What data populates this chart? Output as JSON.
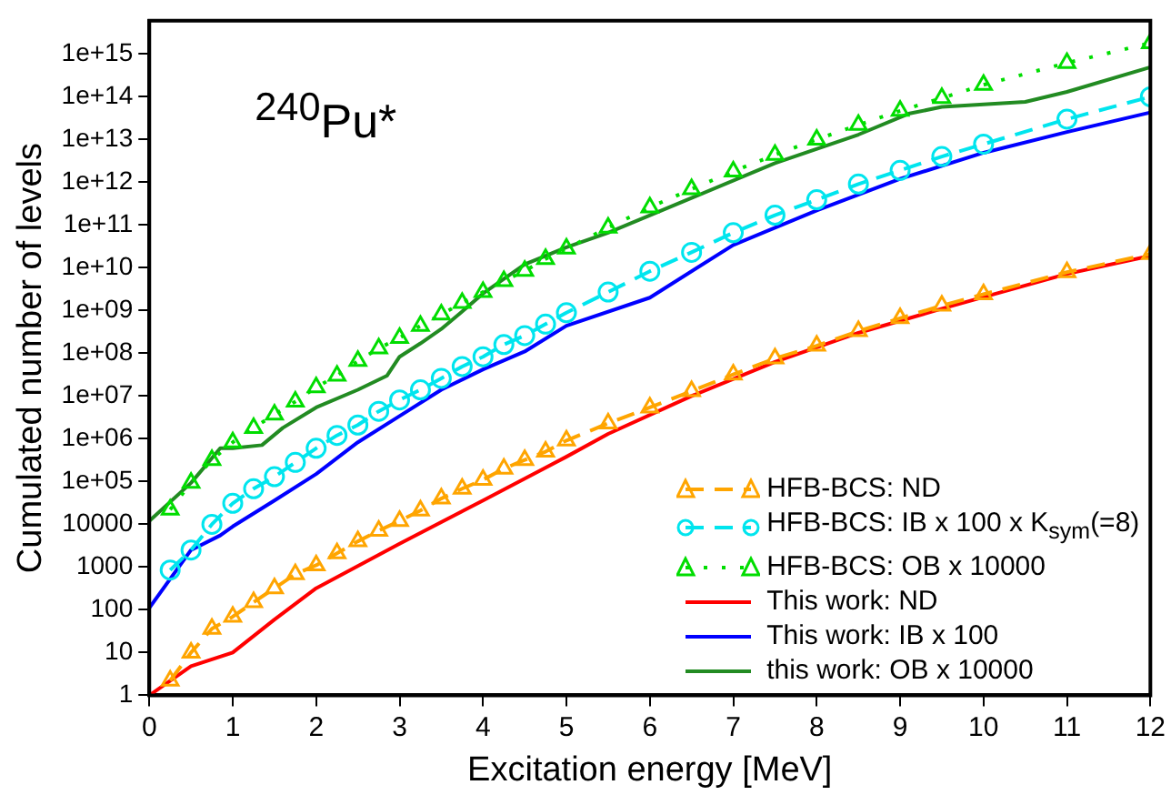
{
  "chart_data": {
    "type": "line",
    "xlabel": "Excitation energy [MeV]",
    "ylabel": "Cumulated number of levels",
    "annotations": [
      "$^{240}$Pu*"
    ],
    "log": "y",
    "grid": false,
    "legend": "bottom right",
    "xlim": [
      0,
      12
    ],
    "xticks": [
      0,
      1,
      2,
      3,
      4,
      5,
      6,
      7,
      8,
      9,
      10,
      11,
      12
    ],
    "ylim": [
      1,
      6000000000000000.0
    ],
    "yticks": [
      1,
      10,
      100,
      1000,
      10000,
      {
        "value": 100000.0,
        "label": "1e+05"
      },
      {
        "value": 1000000.0,
        "label": "1e+06"
      },
      {
        "value": 10000000.0,
        "label": "1e+07"
      },
      {
        "value": 100000000.0,
        "label": "1e+08"
      },
      {
        "value": 1000000000.0,
        "label": "1e+09"
      },
      {
        "value": 10000000000.0,
        "label": "1e+10"
      },
      {
        "value": 100000000000.0,
        "label": "1e+11"
      },
      {
        "value": 1000000000000.0,
        "label": "1e+12"
      },
      {
        "value": 10000000000000.0,
        "label": "1e+13"
      },
      {
        "value": 100000000000000.0,
        "label": "1e+14"
      },
      {
        "value": 1000000000000000.0,
        "label": "1e+15"
      }
    ],
    "series": [
      {
        "name": "HFB-BCS: ND",
        "color": "#ffa500",
        "marker": "triangle",
        "line_style": "dashed",
        "x": [
          0.25,
          0.5,
          0.75,
          1,
          1.25,
          1.5,
          1.75,
          2,
          2.25,
          2.5,
          2.75,
          3,
          3.25,
          3.5,
          3.75,
          4,
          4.25,
          4.5,
          4.75,
          5,
          5.5,
          6,
          6.5,
          7,
          7.5,
          8,
          8.5,
          9,
          9.5,
          10,
          11,
          12
        ],
        "values": [
          2.2,
          10,
          36,
          69,
          150,
          320,
          680,
          1100,
          2100,
          4000,
          7100,
          12000.0,
          21000.0,
          40000.0,
          68000.0,
          110000.0,
          200000.0,
          320000.0,
          500000.0,
          910000.0,
          2300000.0,
          5400000.0,
          13000000.0,
          32000000.0,
          76000000.0,
          150000000.0,
          330000000.0,
          660000000.0,
          1300000000.0,
          2400000000.0,
          7900000000.0,
          21000000000.0
        ]
      },
      {
        "name": "HFB-BCS: IB x 100 x K$_{sym}$(=8)",
        "color": "#00e5ee",
        "marker": "circle",
        "line_style": "dashed",
        "x": [
          0.25,
          0.5,
          0.75,
          1,
          1.25,
          1.5,
          1.75,
          2,
          2.25,
          2.5,
          2.75,
          3,
          3.25,
          3.5,
          3.75,
          4,
          4.25,
          4.5,
          4.75,
          5,
          5.5,
          6,
          6.5,
          7,
          7.5,
          8,
          8.5,
          9,
          9.5,
          10,
          11,
          12
        ],
        "values": [
          850,
          2500,
          10000.0,
          31000.0,
          68000.0,
          130000.0,
          280000.0,
          600000.0,
          1200000.0,
          2100000.0,
          4400000.0,
          8100000.0,
          14000000.0,
          26000000.0,
          49000000.0,
          83000000.0,
          160000000.0,
          260000000.0,
          480000000.0,
          890000000.0,
          2700000000.0,
          8300000000.0,
          23000000000.0,
          66000000000.0,
          170000000000.0,
          390000000000.0,
          910000000000.0,
          1900000000000.0,
          4000000000000.0,
          7800000000000.0,
          30000000000000.0,
          100000000000000.0
        ]
      },
      {
        "name": "HFB-BCS: OB x 10000",
        "color": "#00dd00",
        "marker": "triangle",
        "line_style": "dotted",
        "x": [
          0.25,
          0.5,
          0.75,
          1,
          1.25,
          1.5,
          1.75,
          2,
          2.25,
          2.5,
          2.75,
          3,
          3.25,
          3.5,
          3.75,
          4,
          4.25,
          4.5,
          4.75,
          5,
          5.5,
          6,
          6.5,
          7,
          7.5,
          8,
          8.5,
          9,
          9.5,
          10,
          11,
          12
        ],
        "values": [
          22000.0,
          93000.0,
          320000.0,
          830000.0,
          1800000.0,
          3700000.0,
          7400000.0,
          16000000.0,
          30000000.0,
          66000000.0,
          130000000.0,
          230000000.0,
          440000000.0,
          810000000.0,
          1500000000.0,
          2700000000.0,
          4900000000.0,
          8500000000.0,
          16000000000.0,
          28000000000.0,
          87000000000.0,
          260000000000.0,
          690000000000.0,
          1800000000000.0,
          4400000000000.0,
          10000000000000.0,
          22000000000000.0,
          47000000000000.0,
          93000000000000.0,
          190000000000000.0,
          620000000000000.0,
          1800000000000000.0
        ]
      },
      {
        "name": "This work: ND",
        "color": "#ff0000",
        "marker": "none",
        "line_style": "solid",
        "x": [
          0,
          0.5,
          1,
          1.5,
          2,
          3,
          4,
          5,
          5.5,
          6.5,
          7.5,
          8.5,
          9.5,
          11,
          12
        ],
        "values": [
          1,
          4.8,
          10,
          59,
          320,
          3500,
          36000.0,
          380000.0,
          1300000.0,
          10000000.0,
          63000000.0,
          300000000.0,
          1100000000.0,
          7200000000.0,
          19000000000.0
        ]
      },
      {
        "name": "This work: IB x 100",
        "color": "#0000ff",
        "marker": "none",
        "line_style": "solid",
        "x": [
          0,
          0.5,
          0.85,
          1,
          1.5,
          2,
          2.5,
          3,
          3.5,
          4,
          4.5,
          5,
          6,
          7,
          8,
          9,
          10,
          11,
          12
        ],
        "values": [
          110,
          2500,
          5500,
          8900,
          36000.0,
          150000.0,
          830000.0,
          3400000.0,
          14000000.0,
          42000000.0,
          110000000.0,
          440000000.0,
          2000000000.0,
          34000000000.0,
          220000000000.0,
          1200000000000.0,
          4900000000000.0,
          15000000000000.0,
          43000000000000.0
        ]
      },
      {
        "name": "this work: OB x 10000",
        "color": "#228b22",
        "marker": "none",
        "line_style": "solid",
        "x": [
          0,
          0.5,
          0.85,
          1,
          1.35,
          1.6,
          2,
          2.5,
          2.85,
          3,
          3.25,
          3.5,
          3.75,
          4,
          4.5,
          5,
          5.5,
          6.5,
          7.5,
          8.5,
          9.1,
          9.5,
          10.5,
          11,
          12
        ],
        "values": [
          12000.0,
          93000.0,
          600000.0,
          600000.0,
          710000.0,
          1800000.0,
          5400000.0,
          14000000.0,
          30000000.0,
          83000000.0,
          170000000.0,
          370000000.0,
          950000000.0,
          2500000000.0,
          12000000000.0,
          30000000000.0,
          66000000000.0,
          430000000000.0,
          2800000000000.0,
          13000000000000.0,
          40000000000000.0,
          58000000000000.0,
          76000000000000.0,
          130000000000000.0,
          490000000000000.0
        ]
      }
    ]
  }
}
